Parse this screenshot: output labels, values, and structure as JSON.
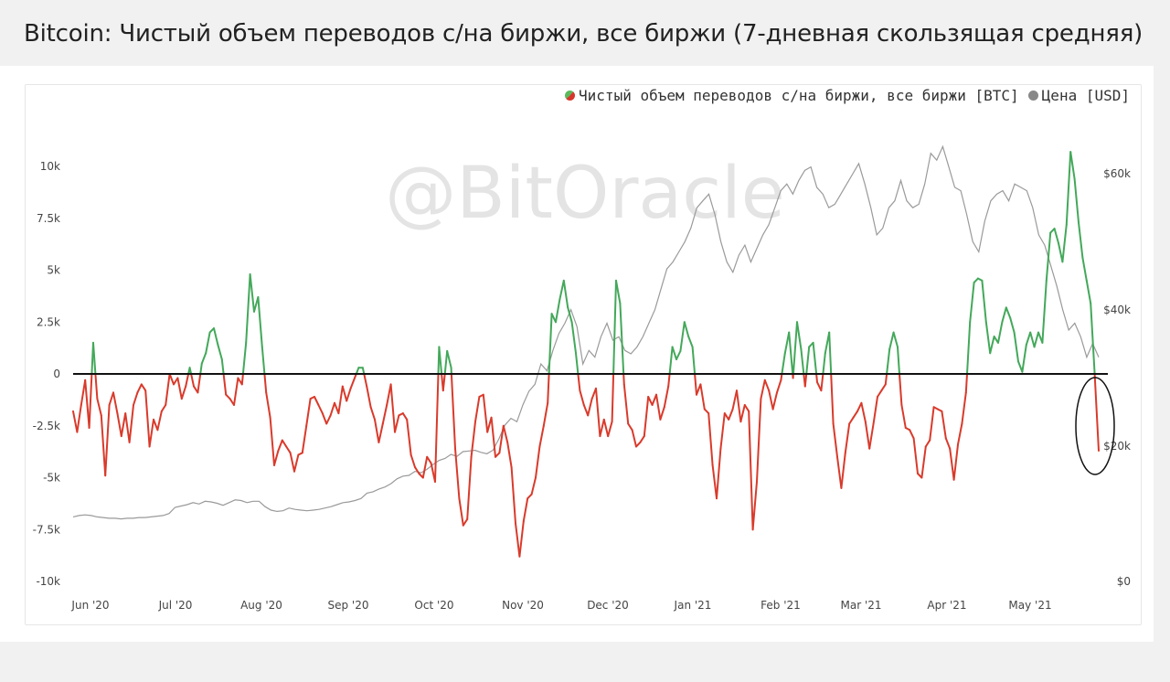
{
  "title": "Bitcoin: Чистый объем переводов с/на биржи, все биржи (7-дневная скользящая средняя)",
  "watermark": "@BitOracle",
  "legend": {
    "netflow": "Чистый объем переводов с/на биржи, все биржи [BTC]",
    "price": "Цена [USD]"
  },
  "colors": {
    "positive": "#43a85a",
    "negative": "#d93a2b",
    "price": "#9a9a9a",
    "zero_line": "#111111"
  },
  "chart_data": {
    "type": "line",
    "x_labels": [
      "Jun '20",
      "Jul '20",
      "Aug '20",
      "Sep '20",
      "Oct '20",
      "Nov '20",
      "Dec '20",
      "Jan '21",
      "Feb '21",
      "Mar '21",
      "Apr '21",
      "May '21"
    ],
    "y_left": {
      "ticks": [
        "10k",
        "7.5k",
        "5k",
        "2.5k",
        "0",
        "-2.5k",
        "-5k",
        "-7.5k",
        "-10k"
      ],
      "range": [
        -10000,
        10000
      ]
    },
    "y_right": {
      "ticks": [
        "$60k",
        "$40k",
        "$20k",
        "$0"
      ],
      "range": [
        0,
        60000
      ]
    },
    "series": [
      {
        "name": "Чистый объем переводов с/на биржи, все биржи [BTC]",
        "axis": "left",
        "values": [
          -1800,
          -2800,
          -1500,
          -300,
          -2600,
          1500,
          -1200,
          -2000,
          -4900,
          -1500,
          -900,
          -1900,
          -3000,
          -1900,
          -3300,
          -1500,
          -900,
          -500,
          -800,
          -3500,
          -2200,
          -2700,
          -1800,
          -1500,
          0,
          -500,
          -200,
          -1200,
          -600,
          300,
          -600,
          -900,
          500,
          1000,
          2000,
          2200,
          1400,
          700,
          -1000,
          -1200,
          -1500,
          -200,
          -500,
          1500,
          4800,
          3000,
          3700,
          1300,
          -900,
          -2100,
          -4400,
          -3700,
          -3200,
          -3500,
          -3800,
          -4700,
          -3900,
          -3800,
          -2500,
          -1200,
          -1100,
          -1500,
          -1900,
          -2400,
          -2000,
          -1400,
          -1900,
          -600,
          -1300,
          -700,
          -200,
          300,
          300,
          -600,
          -1600,
          -2200,
          -3300,
          -2400,
          -1500,
          -500,
          -2800,
          -2000,
          -1900,
          -2200,
          -3900,
          -4500,
          -4800,
          -5000,
          -4000,
          -4300,
          -5200,
          1300,
          -800,
          1100,
          300,
          -3600,
          -6000,
          -7300,
          -7000,
          -4000,
          -2300,
          -1100,
          -1000,
          -2800,
          -2100,
          -4000,
          -3800,
          -2500,
          -3300,
          -4500,
          -7200,
          -8800,
          -7100,
          -6000,
          -5800,
          -5000,
          -3500,
          -2500,
          -1400,
          2900,
          2500,
          3600,
          4500,
          3200,
          2500,
          1000,
          -800,
          -1500,
          -2000,
          -1200,
          -700,
          -3000,
          -2200,
          -3000,
          -2300,
          4500,
          3400,
          -500,
          -2400,
          -2700,
          -3500,
          -3300,
          -3000,
          -1100,
          -1500,
          -1000,
          -2200,
          -1600,
          -600,
          1300,
          700,
          1100,
          2500,
          1800,
          1300,
          -1000,
          -500,
          -1700,
          -1900,
          -4400,
          -6000,
          -3600,
          -1900,
          -2200,
          -1700,
          -800,
          -2300,
          -1500,
          -1800,
          -7500,
          -5200,
          -1200,
          -300,
          -800,
          -1700,
          -900,
          -300,
          1000,
          2000,
          -200,
          2500,
          1200,
          -600,
          1300,
          1500,
          -400,
          -800,
          1000,
          2000,
          -2400,
          -4000,
          -5500,
          -3800,
          -2400,
          -2100,
          -1800,
          -1400,
          -2300,
          -3600,
          -2400,
          -1100,
          -800,
          -500,
          1200,
          2000,
          1300,
          -1500,
          -2600,
          -2700,
          -3100,
          -4800,
          -5000,
          -3500,
          -3200,
          -1600,
          -1700,
          -1800,
          -3100,
          -3600,
          -5100,
          -3400,
          -2400,
          -900,
          2500,
          4400,
          4600,
          4500,
          2500,
          1000,
          1800,
          1500,
          2500,
          3200,
          2700,
          2000,
          600,
          100,
          1400,
          2000,
          1300,
          2000,
          1500,
          4500,
          6800,
          7000,
          6300,
          5400,
          7200,
          10700,
          9400,
          7300,
          5600,
          4500,
          3400,
          0,
          -3700
        ],
        "colors": {
          "positive": "#43a85a",
          "negative": "#d93a2b"
        }
      },
      {
        "name": "Цена [USD]",
        "axis": "right",
        "values": [
          9500,
          9700,
          9800,
          9700,
          9500,
          9400,
          9300,
          9300,
          9200,
          9300,
          9300,
          9400,
          9400,
          9500,
          9600,
          9700,
          10000,
          10900,
          11100,
          11300,
          11600,
          11400,
          11800,
          11700,
          11500,
          11200,
          11600,
          12000,
          11900,
          11600,
          11800,
          11800,
          11000,
          10500,
          10300,
          10400,
          10800,
          10600,
          10500,
          10400,
          10500,
          10600,
          10800,
          11000,
          11300,
          11600,
          11700,
          11900,
          12200,
          13000,
          13200,
          13600,
          13900,
          14400,
          15100,
          15500,
          15600,
          16200,
          16000,
          16500,
          17200,
          17800,
          18100,
          18700,
          18400,
          19100,
          19200,
          19300,
          19000,
          18800,
          19300,
          21000,
          23000,
          24000,
          23500,
          26000,
          28000,
          29000,
          32000,
          31000,
          34000,
          36500,
          38000,
          40000,
          37500,
          32000,
          34000,
          33000,
          36000,
          38000,
          35500,
          36000,
          34000,
          33500,
          34500,
          36000,
          38000,
          40000,
          43000,
          46000,
          47000,
          48500,
          50000,
          52000,
          55000,
          56000,
          57000,
          54000,
          50000,
          47000,
          45500,
          48000,
          49500,
          47000,
          49000,
          51000,
          52500,
          55000,
          57500,
          58500,
          57000,
          59000,
          60500,
          61000,
          58000,
          57000,
          55000,
          55500,
          57000,
          58500,
          60000,
          61500,
          58500,
          55000,
          51000,
          52000,
          55000,
          56000,
          59000,
          56000,
          55000,
          55500,
          58500,
          63000,
          62000,
          64000,
          61000,
          58000,
          57500,
          54000,
          50000,
          48500,
          53000,
          56000,
          57000,
          57500,
          56000,
          58500,
          58000,
          57500,
          55000,
          51000,
          49500,
          46500,
          43500,
          40000,
          37000,
          38000,
          36000,
          33000,
          35000,
          33000
        ]
      }
    ]
  }
}
